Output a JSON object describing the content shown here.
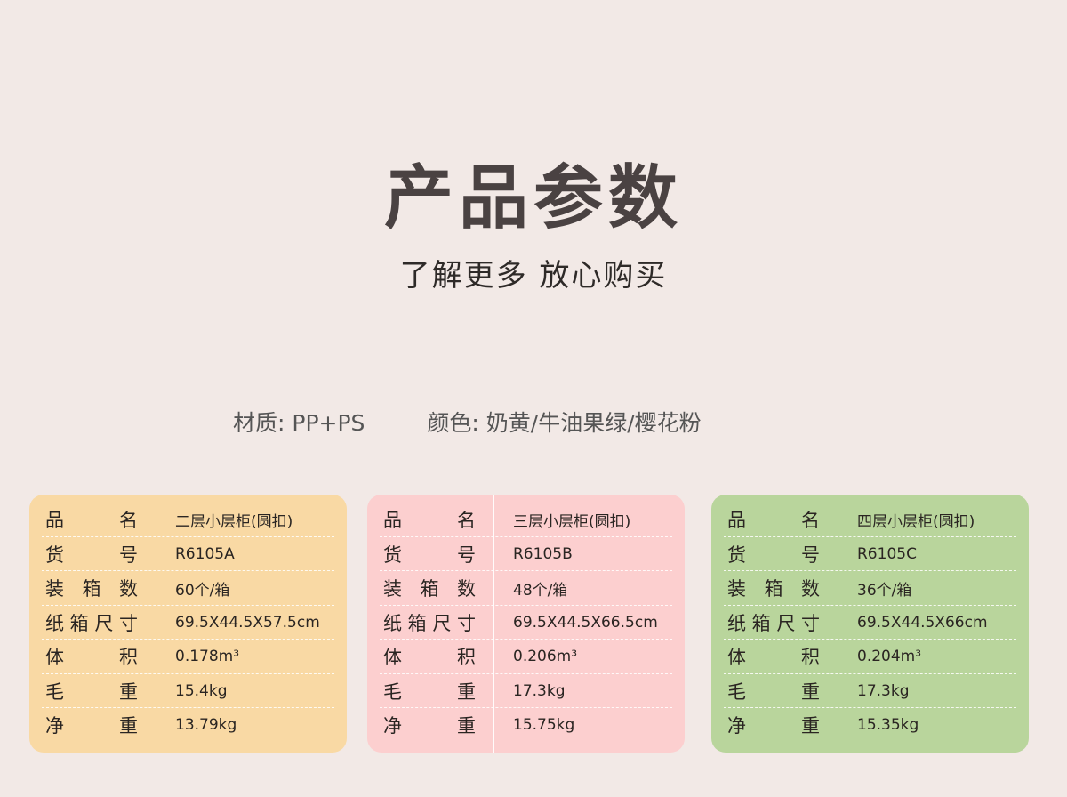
{
  "title": "产品参数",
  "subtitle": "了解更多 放心购买",
  "material": "材质: PP+PS",
  "colors": "颜色: 奶黄/牛油果绿/樱花粉",
  "labels": [
    "品名",
    "货号",
    "装箱数",
    "纸箱尺寸",
    "体积",
    "毛重",
    "净重"
  ],
  "cards": [
    {
      "bg": "#f9d9a4",
      "values": [
        "二层小层柜(圆扣)",
        "R6105A",
        "60个/箱",
        "69.5X44.5X57.5cm",
        "0.178m³",
        "15.4kg",
        "13.79kg"
      ]
    },
    {
      "bg": "#fccfcf",
      "values": [
        "三层小层柜(圆扣)",
        "R6105B",
        "48个/箱",
        "69.5X44.5X66.5cm",
        "0.206m³",
        "17.3kg",
        "15.75kg"
      ]
    },
    {
      "bg": "#b9d59c",
      "values": [
        "四层小层柜(圆扣)",
        "R6105C",
        "36个/箱",
        "69.5X44.5X66cm",
        "0.204m³",
        "17.3kg",
        "15.35kg"
      ]
    }
  ]
}
